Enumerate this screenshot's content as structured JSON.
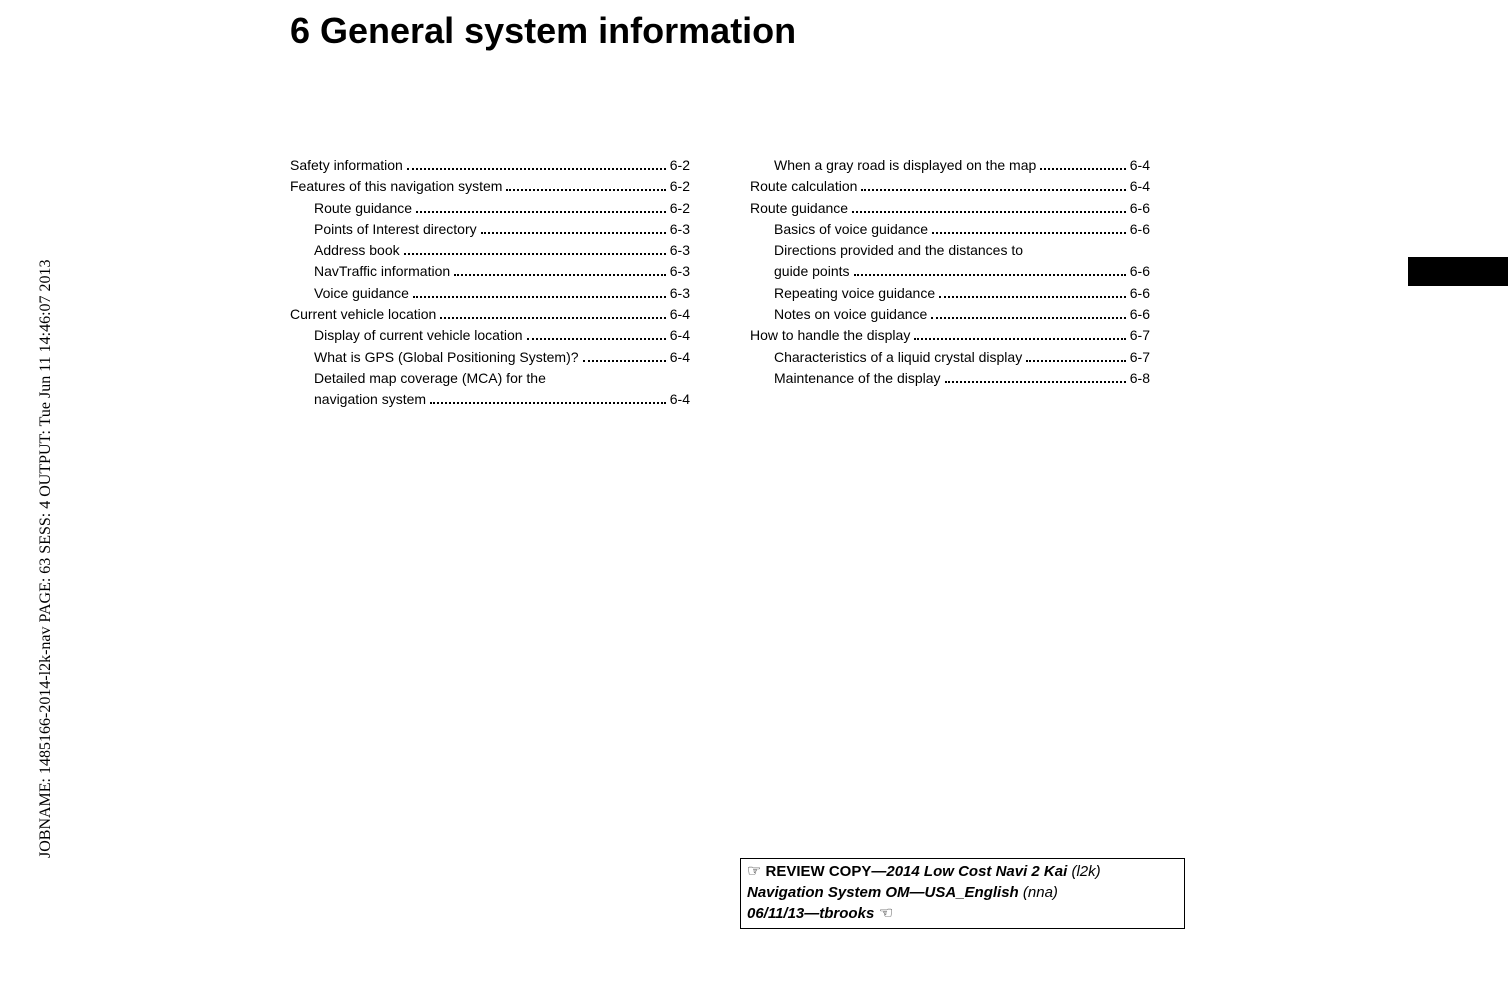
{
  "vertical_text": "JOBNAME: 1485166-2014-l2k-nav  PAGE: 63  SESS: 4  OUTPUT: Tue Jun 11 14:46:07 2013",
  "title": "6  General system information",
  "toc_left": [
    {
      "level": 1,
      "label": "Safety information",
      "page": "6-2"
    },
    {
      "level": 1,
      "label": "Features of this navigation system",
      "page": "6-2"
    },
    {
      "level": 2,
      "label": "Route guidance",
      "page": "6-2"
    },
    {
      "level": 2,
      "label": "Points of Interest directory",
      "page": "6-3"
    },
    {
      "level": 2,
      "label": "Address book",
      "page": "6-3"
    },
    {
      "level": 2,
      "label": "NavTraffic information",
      "page": "6-3"
    },
    {
      "level": 2,
      "label": "Voice guidance",
      "page": "6-3"
    },
    {
      "level": 1,
      "label": "Current vehicle location",
      "page": "6-4"
    },
    {
      "level": 2,
      "label": "Display of current vehicle location",
      "page": "6-4"
    },
    {
      "level": 2,
      "label": "What is GPS (Global Positioning System)?",
      "page": "6-4"
    },
    {
      "level": 2,
      "label": "Detailed map coverage (MCA) for the navigation system",
      "page": "6-4"
    }
  ],
  "toc_right": [
    {
      "level": 2,
      "label": "When a gray road is displayed on the map",
      "page": "6-4"
    },
    {
      "level": 1,
      "label": "Route calculation",
      "page": "6-4"
    },
    {
      "level": 1,
      "label": "Route guidance",
      "page": "6-6"
    },
    {
      "level": 2,
      "label": "Basics of voice guidance",
      "page": "6-6"
    },
    {
      "level": 2,
      "label": "Directions provided and the distances to guide points",
      "page": "6-6"
    },
    {
      "level": 2,
      "label": "Repeating voice guidance",
      "page": "6-6"
    },
    {
      "level": 2,
      "label": "Notes on voice guidance",
      "page": "6-6"
    },
    {
      "level": 1,
      "label": "How to handle the display",
      "page": "6-7"
    },
    {
      "level": 2,
      "label": "Characteristics of a liquid crystal display",
      "page": "6-7"
    },
    {
      "level": 2,
      "label": "Maintenance of the display",
      "page": "6-8"
    }
  ],
  "review": {
    "hand_left": "☞",
    "bold1": " REVIEW COPY—",
    "bolditalic1": "2014 Low Cost Navi 2 Kai",
    "italic1": " (l2k)",
    "bolditalic2": "Navigation System OM—USA_English",
    "italic2": " (nna)",
    "bolditalic3": "06/11/13—tbrooks",
    "hand_right": " ☜"
  }
}
